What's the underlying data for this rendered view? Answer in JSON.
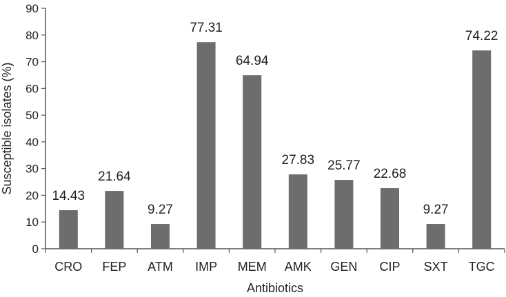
{
  "chart_data": {
    "type": "bar",
    "categories": [
      "CRO",
      "FEP",
      "ATM",
      "IMP",
      "MEM",
      "AMK",
      "GEN",
      "CIP",
      "SXT",
      "TGC"
    ],
    "values": [
      14.43,
      21.64,
      9.27,
      77.31,
      64.94,
      27.83,
      25.77,
      22.68,
      9.27,
      74.22
    ],
    "data_labels": [
      "14.43",
      "21.64",
      "9.27",
      "77.31",
      "64.94",
      "27.83",
      "25.77",
      "22.68",
      "9.27",
      "74.22"
    ],
    "title": "",
    "xlabel": "Antibiotics",
    "ylabel": "Susceptible isolates (%)",
    "ylim": [
      0,
      90
    ],
    "yticks": [
      0,
      10,
      20,
      30,
      40,
      50,
      60,
      70,
      80,
      90
    ],
    "grid": false,
    "legend": "none",
    "bar_color": "#6d6d6d",
    "axis_color": "#555555"
  }
}
